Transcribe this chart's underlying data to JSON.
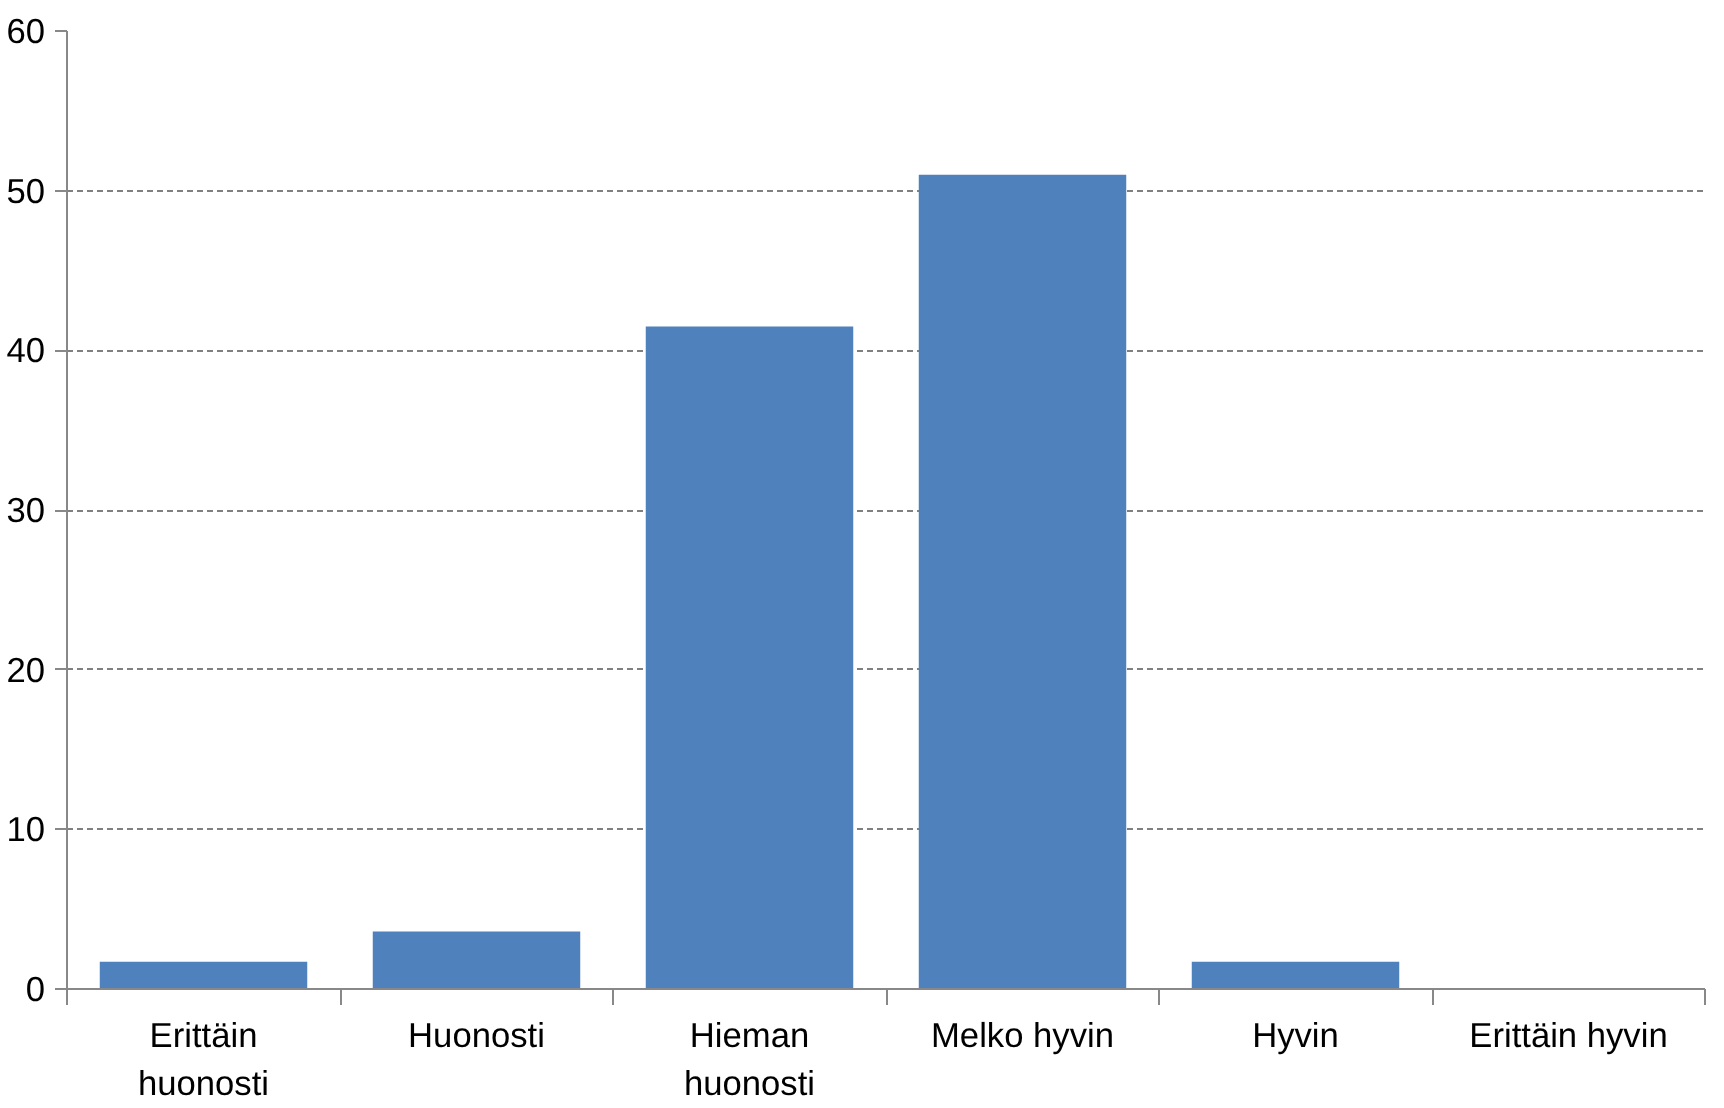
{
  "chart_data": {
    "type": "bar",
    "categories": [
      "Erittäin huonosti",
      "Huonosti",
      "Hieman huonosti",
      "Melko hyvin",
      "Hyvin",
      "Erittäin hyvin"
    ],
    "values": [
      1.7,
      3.6,
      41.5,
      51.0,
      1.7,
      0
    ],
    "color": "#4f81bd",
    "ylim": [
      0,
      60
    ],
    "yticks": [
      0,
      10,
      20,
      30,
      40,
      50,
      60
    ],
    "grid": "y"
  }
}
